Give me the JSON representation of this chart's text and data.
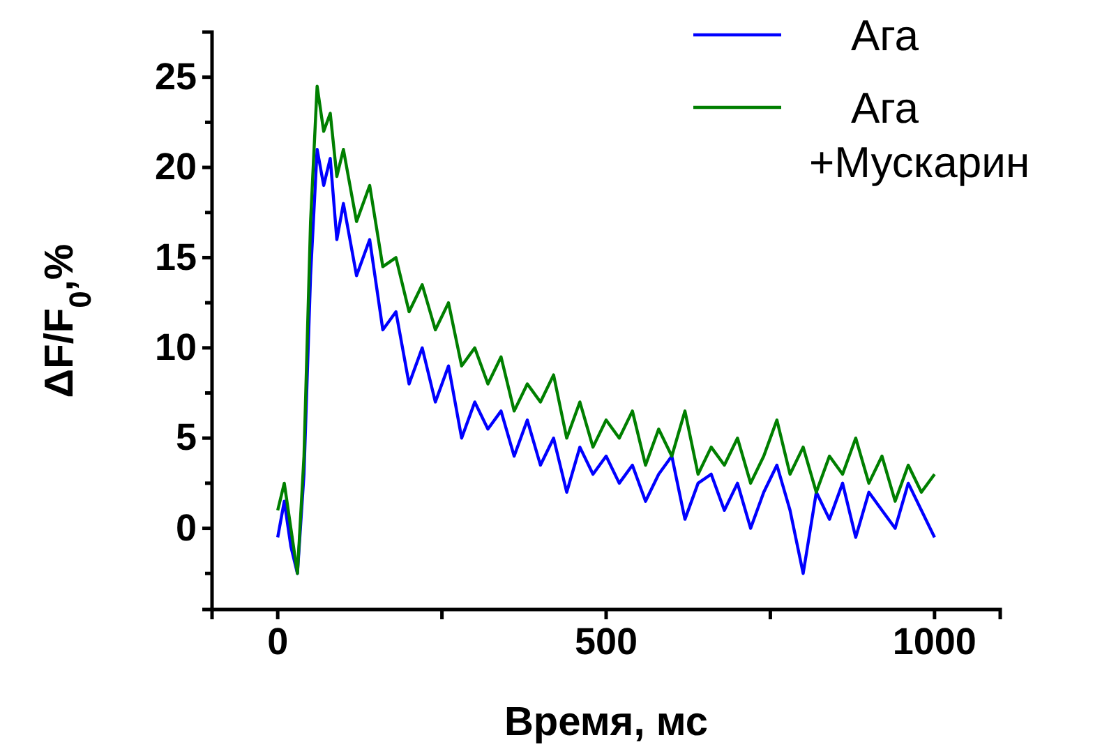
{
  "chart_data": {
    "type": "line",
    "xlabel": "Время, мс",
    "ylabel": "ΔF/F$_{0}$,%",
    "xlim": [
      -100,
      1100
    ],
    "ylim": [
      -4.5,
      27.5
    ],
    "xticks": [
      0,
      {
        "value": 250,
        "label": null
      },
      500,
      {
        "value": 750,
        "label": null
      },
      1000
    ],
    "yticks": [
      {
        "value": -2.5,
        "label": null
      },
      0,
      {
        "value": 2.5,
        "label": null
      },
      5,
      {
        "value": 7.5,
        "label": null
      },
      10,
      {
        "value": 12.5,
        "label": null
      },
      15,
      {
        "value": 17.5,
        "label": null
      },
      20,
      {
        "value": 22.5,
        "label": null
      },
      25
    ],
    "grid": false,
    "legend": "top right",
    "line_style": "solid",
    "marker": "none",
    "x": [
      0,
      10,
      20,
      30,
      40,
      50,
      60,
      70,
      80,
      90,
      100,
      120,
      140,
      160,
      180,
      200,
      220,
      240,
      260,
      280,
      300,
      320,
      340,
      360,
      380,
      400,
      420,
      440,
      460,
      480,
      500,
      520,
      540,
      560,
      580,
      600,
      620,
      640,
      660,
      680,
      700,
      720,
      740,
      760,
      780,
      800,
      820,
      840,
      860,
      880,
      900,
      920,
      940,
      960,
      980,
      1000
    ],
    "series": [
      {
        "name": "Ага",
        "color": "#0000ff",
        "values": [
          -0.5,
          1.5,
          -1,
          -2.5,
          3,
          14,
          21,
          19,
          20.5,
          16,
          18,
          14,
          16,
          11,
          12,
          8,
          10,
          7,
          9,
          5,
          7,
          5.5,
          6.5,
          4,
          6,
          3.5,
          5,
          2,
          4.5,
          3,
          4,
          2.5,
          3.5,
          1.5,
          3,
          4,
          0.5,
          2.5,
          3,
          1,
          2.5,
          0,
          2,
          3.5,
          1,
          -2.5,
          2,
          0.5,
          2.5,
          -0.5,
          2,
          1,
          0,
          2.5,
          1,
          -0.5
        ]
      },
      {
        "name": "Ага +Мускарин",
        "color": "#007f00",
        "values": [
          1,
          2.5,
          0,
          -2.5,
          4,
          17,
          24.5,
          22,
          23,
          19.5,
          21,
          17,
          19,
          14.5,
          15,
          12,
          13.5,
          11,
          12.5,
          9,
          10,
          8,
          9.5,
          6.5,
          8,
          7,
          8.5,
          5,
          7,
          4.5,
          6,
          5,
          6.5,
          3.5,
          5.5,
          4,
          6.5,
          3,
          4.5,
          3.5,
          5,
          2.5,
          4,
          6,
          3,
          4.5,
          2,
          4,
          3,
          5,
          2.5,
          4,
          1.5,
          3.5,
          2,
          3
        ]
      }
    ]
  }
}
